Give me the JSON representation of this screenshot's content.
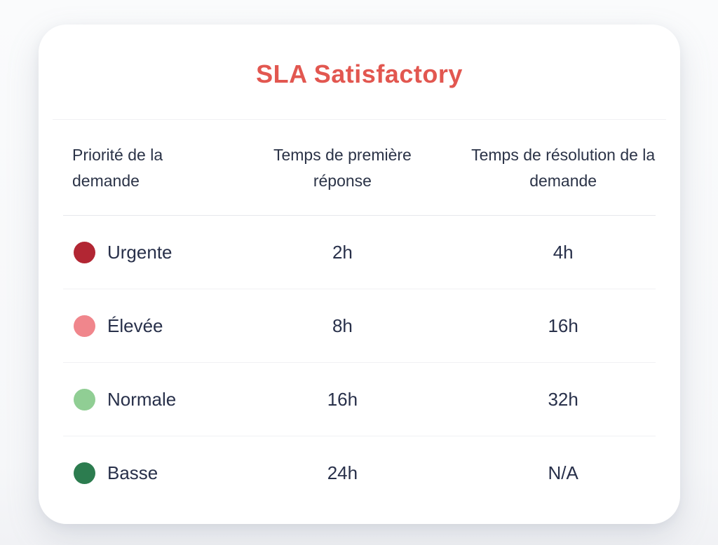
{
  "page": {
    "background_color": "#f7f8fa"
  },
  "card": {
    "background_color": "#ffffff",
    "title": "SLA Satisfactory",
    "title_color": "#e25750"
  },
  "table": {
    "text_color": "#2b3347",
    "columns": [
      {
        "label": "Priorité de la demande"
      },
      {
        "label": "Temps de première réponse"
      },
      {
        "label": "Temps de résolution de la demande"
      }
    ],
    "rows": [
      {
        "priority": "Urgente",
        "dot_color": "#b22633",
        "first_response": "2h",
        "resolution": "4h"
      },
      {
        "priority": "Élevée",
        "dot_color": "#f0868c",
        "first_response": "8h",
        "resolution": "16h"
      },
      {
        "priority": "Normale",
        "dot_color": "#90ce94",
        "first_response": "16h",
        "resolution": "32h"
      },
      {
        "priority": "Basse",
        "dot_color": "#2c7c4f",
        "first_response": "24h",
        "resolution": "N/A"
      }
    ]
  }
}
